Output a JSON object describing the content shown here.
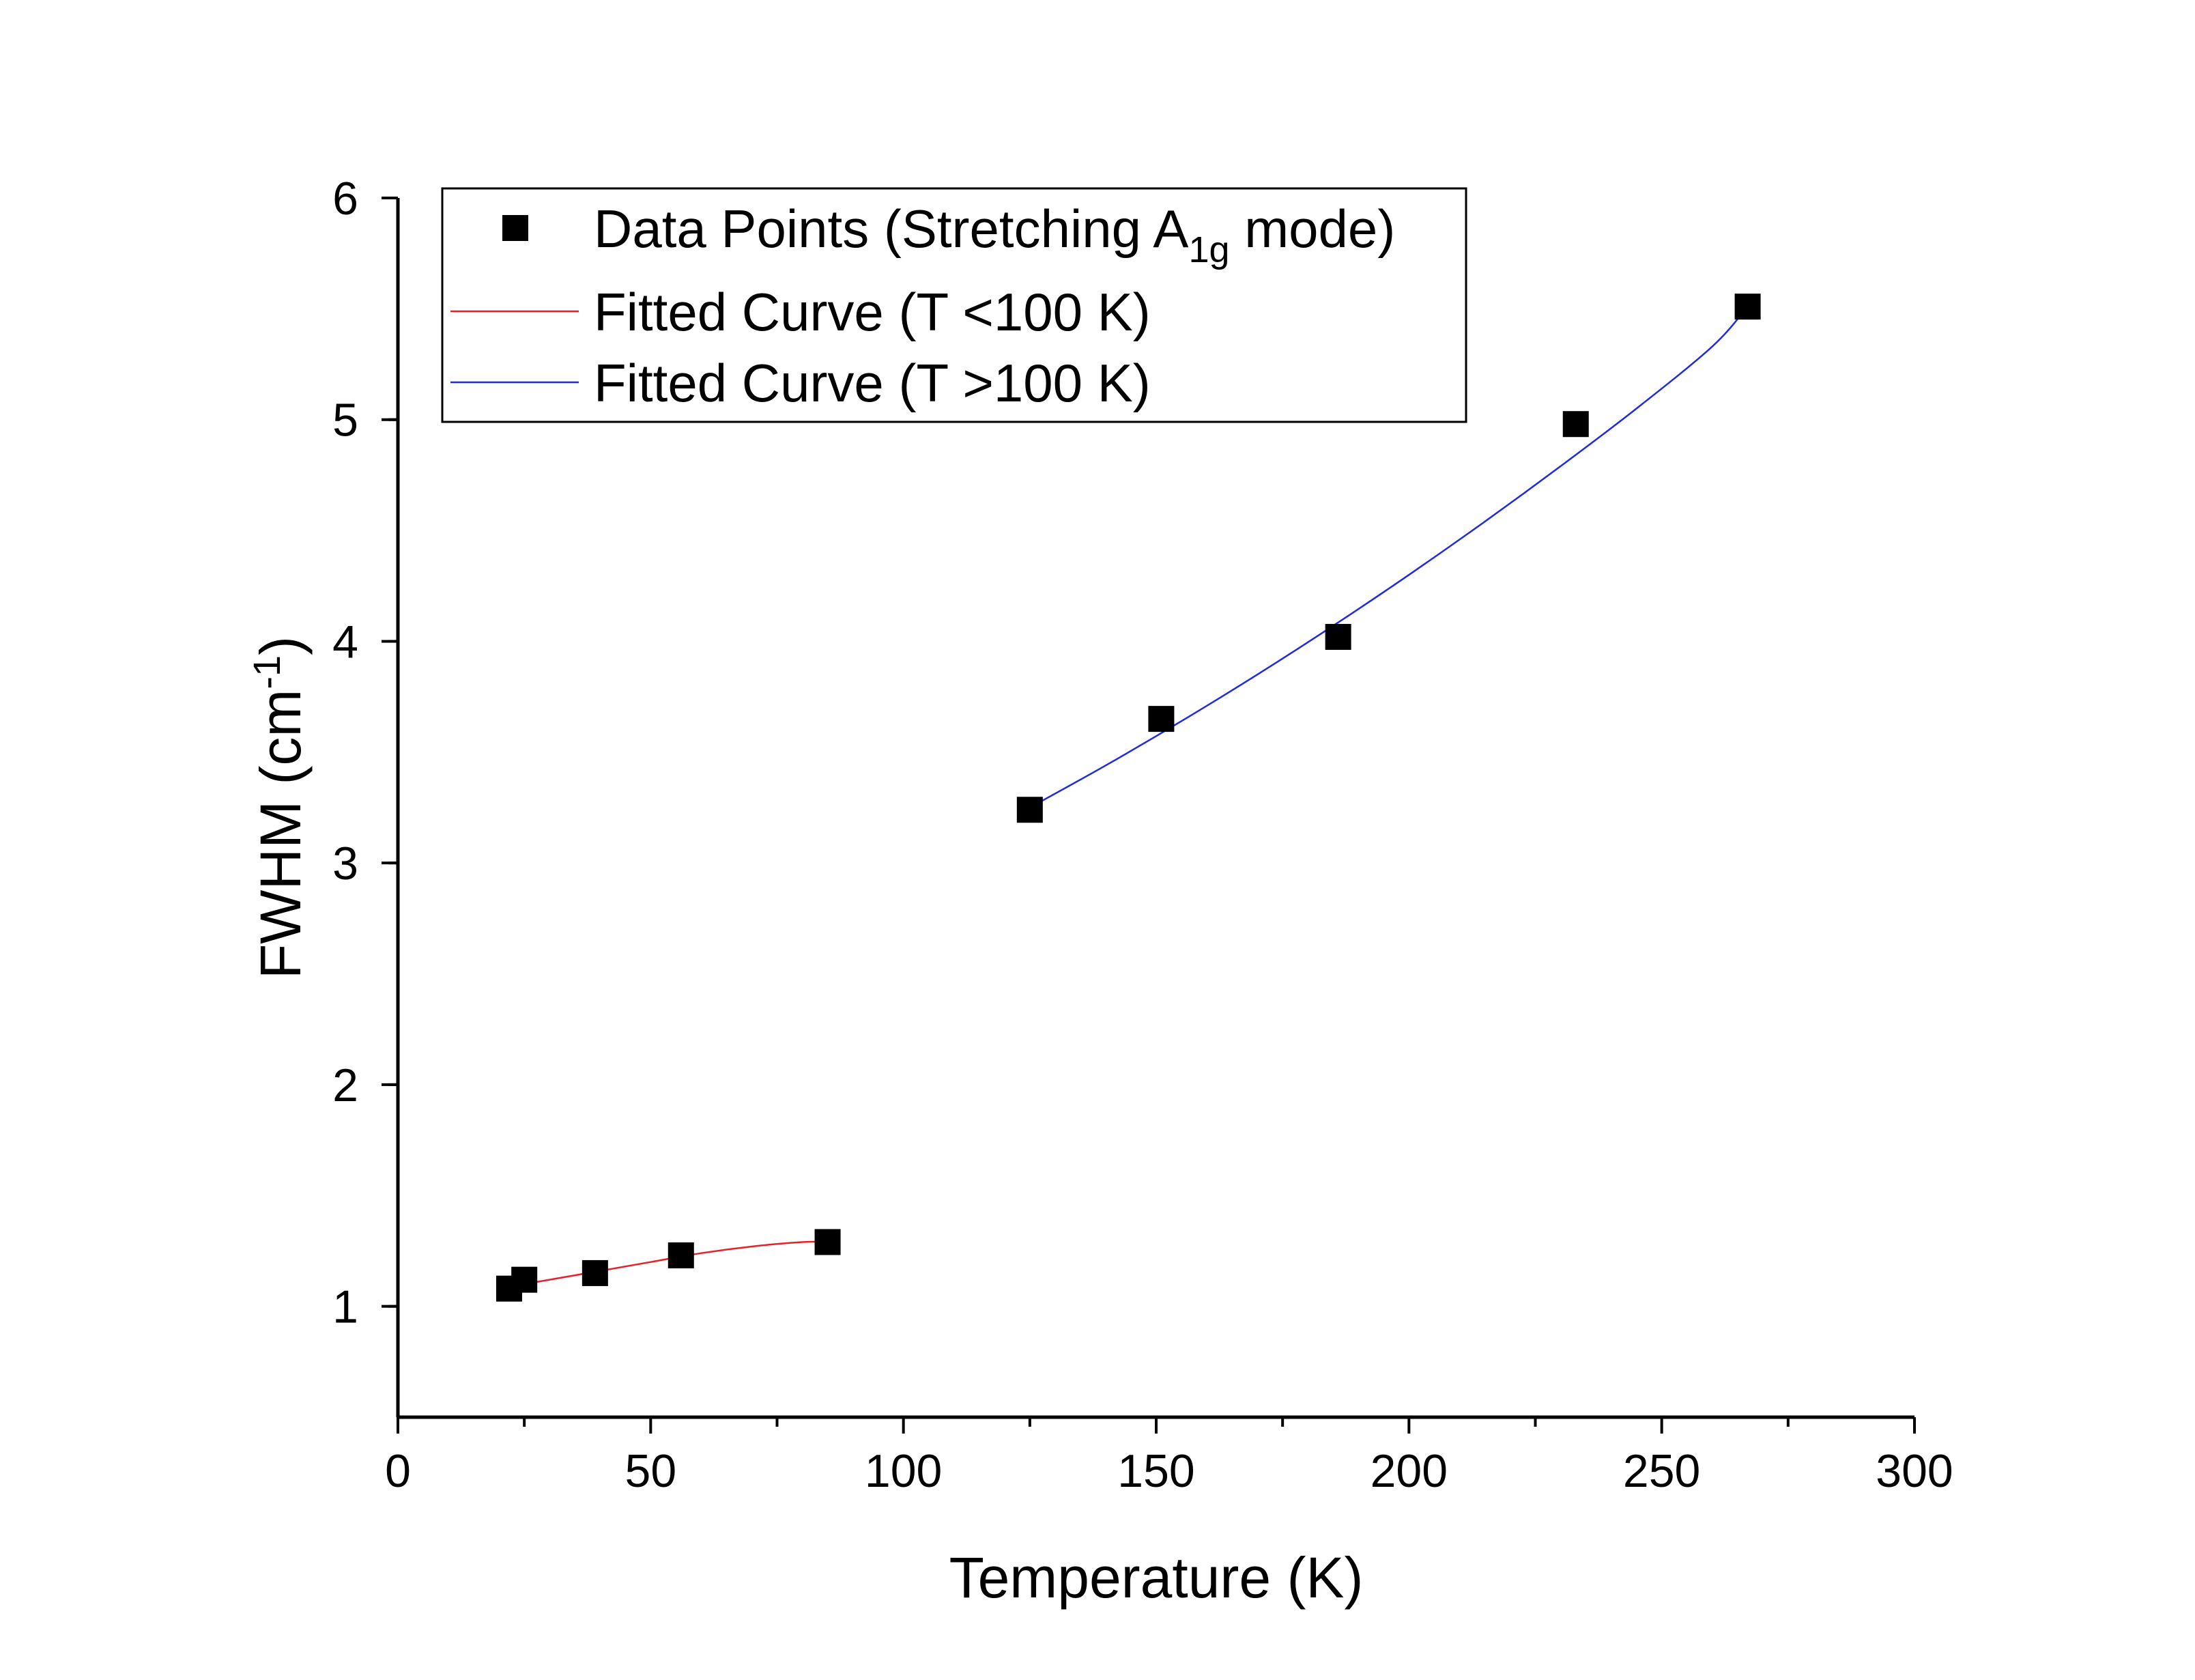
{
  "chart_data": {
    "type": "scatter",
    "xlabel": "Temperature (K)",
    "ylabel": {
      "main": "FWHM (cm",
      "sup": "-1",
      "end": ")"
    },
    "xlim": [
      0,
      300
    ],
    "ylim": [
      0.5,
      6
    ],
    "x_ticks": [
      0,
      50,
      100,
      150,
      200,
      250,
      300
    ],
    "y_ticks": [
      1,
      2,
      3,
      4,
      5,
      6
    ],
    "x_minor_step": 25,
    "y_minor_step": 0.5,
    "grid": false,
    "legend_position": "top-left",
    "series": [
      {
        "name": "Data Points (Stretching A1g mode)",
        "legend": {
          "main": "Data Points (Stretching A",
          "sub": "1g",
          "end": " mode)"
        },
        "type": "scatter",
        "marker": "square",
        "color": "#000000",
        "x": [
          22,
          25,
          39,
          56,
          85,
          125,
          151,
          186,
          233,
          267
        ],
        "y": [
          1.08,
          1.12,
          1.15,
          1.23,
          1.29,
          3.24,
          3.65,
          4.02,
          4.98,
          5.51
        ]
      },
      {
        "name": "Fitted Curve (T <100 K)",
        "type": "line",
        "color": "#e8202a",
        "x": [
          22,
          30,
          40,
          50,
          60,
          70,
          80,
          85
        ],
        "y": [
          1.09,
          1.12,
          1.16,
          1.2,
          1.24,
          1.27,
          1.29,
          1.29
        ]
      },
      {
        "name": "Fitted Curve (T >100 K)",
        "type": "line",
        "color": "#1f2be0",
        "x": [
          125,
          140,
          155,
          170,
          185,
          200,
          215,
          230,
          245,
          260,
          267
        ],
        "y": [
          3.25,
          3.44,
          3.64,
          3.85,
          4.07,
          4.3,
          4.54,
          4.79,
          5.05,
          5.33,
          5.51
        ]
      }
    ]
  }
}
